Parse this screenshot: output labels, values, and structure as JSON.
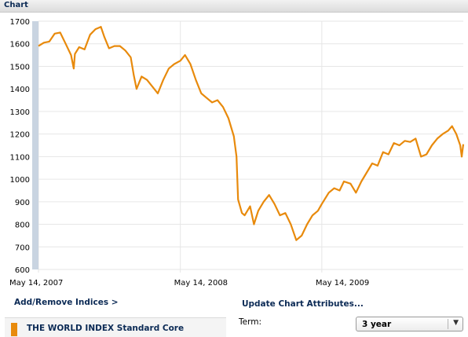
{
  "header": {
    "title": "Chart"
  },
  "links": {
    "add_remove": "Add/Remove Indices >",
    "update": "Update Chart Attributes..."
  },
  "legend": {
    "label": "THE WORLD INDEX Standard Core"
  },
  "term": {
    "label": "Term:",
    "value": "3 year"
  },
  "colors": {
    "series": "#e88a0c",
    "grid": "#e6e6e6",
    "scroll_strip": "#c9d4e1",
    "header_text": "#0b2a55"
  },
  "chart_data": {
    "type": "line",
    "title": "",
    "xlabel": "",
    "ylabel": "",
    "ylim": [
      600,
      1700
    ],
    "yticks": [
      "600",
      "700",
      "800",
      "900",
      "1000",
      "1100",
      "1200",
      "1300",
      "1400",
      "1500",
      "1600",
      "1700"
    ],
    "xticks": [
      "May 14, 2007",
      "May 14, 2008",
      "May 14, 2009"
    ],
    "grid": true,
    "series": [
      {
        "name": "THE WORLD INDEX Standard Core",
        "x": [
          "2007-05-14",
          "2007-05-28",
          "2007-06-11",
          "2007-06-25",
          "2007-07-09",
          "2007-07-23",
          "2007-08-06",
          "2007-08-13",
          "2007-08-16",
          "2007-08-27",
          "2007-09-10",
          "2007-09-24",
          "2007-10-08",
          "2007-10-22",
          "2007-10-31",
          "2007-11-12",
          "2007-11-26",
          "2007-12-10",
          "2007-12-24",
          "2008-01-07",
          "2008-01-15",
          "2008-01-22",
          "2008-02-04",
          "2008-02-18",
          "2008-03-03",
          "2008-03-17",
          "2008-03-31",
          "2008-04-14",
          "2008-04-28",
          "2008-05-14",
          "2008-05-26",
          "2008-06-09",
          "2008-06-23",
          "2008-07-07",
          "2008-07-21",
          "2008-08-04",
          "2008-08-18",
          "2008-09-01",
          "2008-09-15",
          "2008-09-29",
          "2008-10-06",
          "2008-10-10",
          "2008-10-20",
          "2008-10-27",
          "2008-11-10",
          "2008-11-20",
          "2008-12-01",
          "2008-12-15",
          "2008-12-29",
          "2009-01-12",
          "2009-01-26",
          "2009-02-09",
          "2009-02-23",
          "2009-03-09",
          "2009-03-23",
          "2009-04-06",
          "2009-04-20",
          "2009-05-04",
          "2009-05-14",
          "2009-06-01",
          "2009-06-15",
          "2009-06-29",
          "2009-07-10",
          "2009-07-27",
          "2009-08-10",
          "2009-08-24",
          "2009-09-07",
          "2009-09-21",
          "2009-10-05",
          "2009-10-19",
          "2009-11-02",
          "2009-11-16",
          "2009-11-30",
          "2009-12-14",
          "2009-12-28",
          "2010-01-11",
          "2010-01-25",
          "2010-02-08",
          "2010-02-22",
          "2010-03-08",
          "2010-03-22",
          "2010-04-05",
          "2010-04-15",
          "2010-04-26",
          "2010-05-06",
          "2010-05-10",
          "2010-05-14"
        ],
        "values": [
          1590,
          1605,
          1610,
          1645,
          1650,
          1600,
          1550,
          1490,
          1555,
          1585,
          1575,
          1640,
          1665,
          1675,
          1630,
          1580,
          1590,
          1590,
          1570,
          1540,
          1460,
          1400,
          1455,
          1440,
          1410,
          1380,
          1440,
          1490,
          1510,
          1525,
          1550,
          1510,
          1440,
          1380,
          1360,
          1340,
          1350,
          1320,
          1270,
          1190,
          1100,
          910,
          850,
          840,
          880,
          800,
          860,
          900,
          930,
          890,
          840,
          850,
          800,
          730,
          750,
          800,
          840,
          860,
          890,
          940,
          960,
          950,
          990,
          980,
          940,
          990,
          1030,
          1070,
          1060,
          1120,
          1110,
          1160,
          1150,
          1170,
          1165,
          1180,
          1100,
          1110,
          1150,
          1180,
          1200,
          1215,
          1235,
          1200,
          1150,
          1100,
          1155
        ]
      }
    ]
  }
}
